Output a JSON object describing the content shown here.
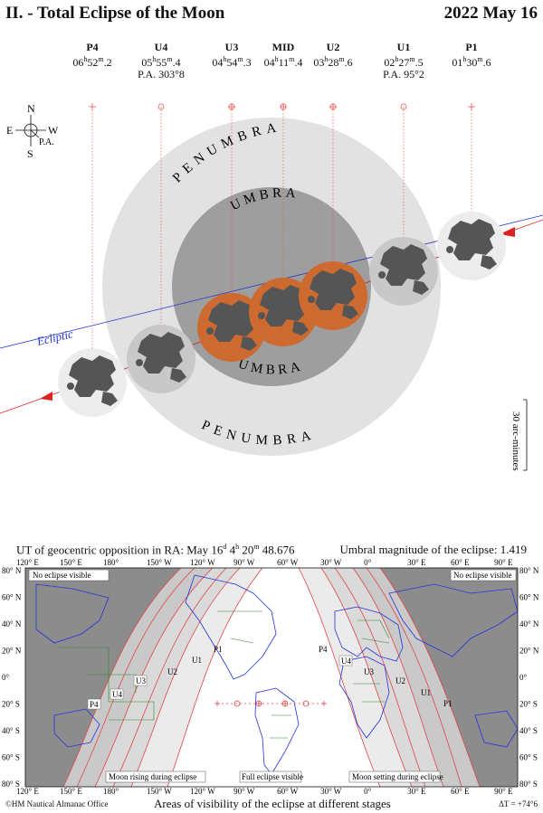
{
  "header": {
    "title": "II. - Total Eclipse of the Moon",
    "date": "2022 May 16"
  },
  "contacts": [
    {
      "label": "P4",
      "h": "06",
      "m": "52",
      "s": "2",
      "pa": ""
    },
    {
      "label": "U4",
      "h": "05",
      "m": "55",
      "s": "4",
      "pa": "P.A. 303°8"
    },
    {
      "label": "U3",
      "h": "04",
      "m": "54",
      "s": "3",
      "pa": ""
    },
    {
      "label": "MID",
      "h": "04",
      "m": "11",
      "s": "4",
      "pa": ""
    },
    {
      "label": "U2",
      "h": "03",
      "m": "28",
      "s": "6",
      "pa": ""
    },
    {
      "label": "U1",
      "h": "02",
      "m": "27",
      "s": "5",
      "pa": "P.A. 95°2"
    },
    {
      "label": "P1",
      "h": "01",
      "m": "30",
      "s": "6",
      "pa": ""
    }
  ],
  "compass": {
    "n": "N",
    "s": "S",
    "e": "E",
    "w": "W",
    "pa": "P.A."
  },
  "shadow_labels": {
    "penumbra": "PENUMBRA",
    "umbra": "UMBRA",
    "umbra_lower": "UMBRA",
    "ecliptic": "Ecliptic"
  },
  "scale_label": "30 arc-minutes",
  "opposition": "UT of geocentric opposition in RA: May 16",
  "opposition_sup": "d",
  "opposition_time": "4",
  "opposition_rest": "20",
  "opposition_secs": "48.676",
  "magnitude": "Umbral magnitude of the eclipse: 1.419",
  "map": {
    "top_lon": [
      "120° E",
      "150° E",
      "180°",
      "150° W",
      "120° W",
      "90° W",
      "60° W",
      "30° W",
      "0°",
      "30° E",
      "60° E",
      "90° E"
    ],
    "bottom_lon": [
      "120° E",
      "150° E",
      "180°",
      "150° W",
      "120° W",
      "90° W",
      "60° W",
      "30° W",
      "0°",
      "30° E",
      "60° E",
      "90° E"
    ],
    "lat": [
      "80° N",
      "60° N",
      "40° N",
      "20° N",
      "0°",
      "20° S",
      "40° S",
      "60° S",
      "80° S"
    ],
    "no_vis_left": "No eclipse visible",
    "no_vis_right": "No eclipse visible",
    "rising": "Moon rising during eclipse",
    "full": "Full eclipse visible",
    "setting": "Moon setting during eclipse",
    "curve_labels_left": [
      "P4",
      "U4",
      "U3",
      "U2",
      "U1",
      "P1"
    ],
    "curve_labels_right": [
      "P4",
      "U4",
      "U3",
      "U2",
      "U1",
      "P1"
    ]
  },
  "footer": {
    "left": "©HM Nautical Almanac Office",
    "center": "Areas of visibility of the eclipse at different stages",
    "right": "ΔT = +74°6"
  }
}
